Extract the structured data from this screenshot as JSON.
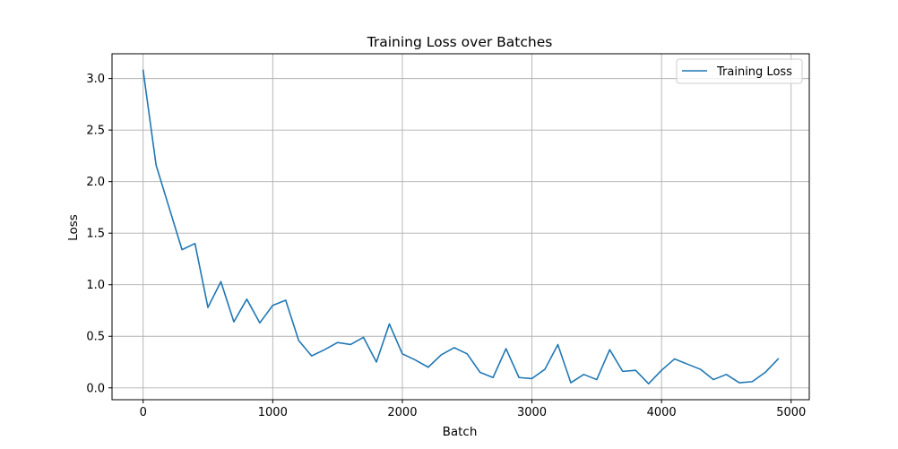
{
  "chart_data": {
    "type": "line",
    "title": "Training Loss over Batches",
    "xlabel": "Batch",
    "ylabel": "Loss",
    "xlim": [
      -240,
      5140
    ],
    "ylim": [
      -0.115,
      3.24
    ],
    "xticks": [
      0,
      1000,
      2000,
      3000,
      4000,
      5000
    ],
    "xtick_labels": [
      "0",
      "1000",
      "2000",
      "3000",
      "4000",
      "5000"
    ],
    "yticks": [
      0.0,
      0.5,
      1.0,
      1.5,
      2.0,
      2.5,
      3.0
    ],
    "ytick_labels": [
      "0.0",
      "0.5",
      "1.0",
      "1.5",
      "2.0",
      "2.5",
      "3.0"
    ],
    "grid": true,
    "legend": {
      "placement": "top-right"
    },
    "series": [
      {
        "name": "Training Loss",
        "color": "#1f77b4",
        "x": [
          0,
          100,
          200,
          300,
          400,
          500,
          600,
          700,
          800,
          900,
          1000,
          1100,
          1200,
          1300,
          1400,
          1500,
          1600,
          1700,
          1800,
          1900,
          2000,
          2100,
          2200,
          2300,
          2400,
          2500,
          2600,
          2700,
          2800,
          2900,
          3000,
          3100,
          3200,
          3300,
          3400,
          3500,
          3600,
          3700,
          3800,
          3900,
          4000,
          4100,
          4200,
          4300,
          4400,
          4500,
          4600,
          4700,
          4800,
          4900
        ],
        "y": [
          3.08,
          2.16,
          1.75,
          1.34,
          1.4,
          0.78,
          1.03,
          0.64,
          0.86,
          0.63,
          0.8,
          0.85,
          0.46,
          0.31,
          0.37,
          0.44,
          0.42,
          0.49,
          0.25,
          0.62,
          0.33,
          0.27,
          0.2,
          0.32,
          0.39,
          0.33,
          0.15,
          0.1,
          0.38,
          0.1,
          0.09,
          0.18,
          0.42,
          0.05,
          0.13,
          0.08,
          0.37,
          0.16,
          0.17,
          0.04,
          0.17,
          0.28,
          0.23,
          0.18,
          0.08,
          0.13,
          0.05,
          0.06,
          0.15,
          0.28
        ]
      }
    ]
  }
}
